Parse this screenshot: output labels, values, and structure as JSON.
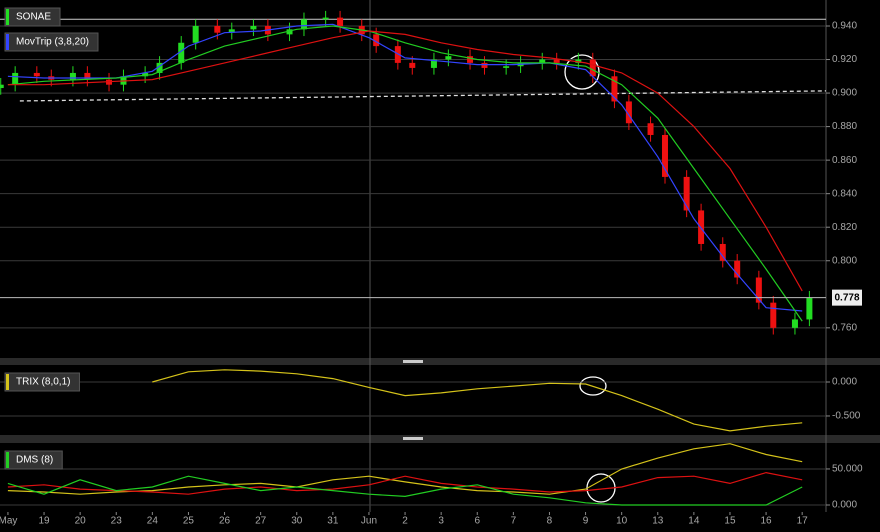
{
  "chart_data": [
    {
      "type": "candlestick",
      "title": "SONAE",
      "indicator": "MovTrip (3,8,20)",
      "up_color": "#22dd22",
      "down_color": "#ee1111",
      "ylim": [
        0.742,
        0.9555
      ],
      "yticks": [
        {
          "value": 0.94,
          "label": "0.940"
        },
        {
          "value": 0.92,
          "label": "0.920"
        },
        {
          "value": 0.9,
          "label": "0.900"
        },
        {
          "value": 0.88,
          "label": "0.880"
        },
        {
          "value": 0.86,
          "label": "0.860"
        },
        {
          "value": 0.84,
          "label": "0.840"
        },
        {
          "value": 0.82,
          "label": "0.820"
        },
        {
          "value": 0.8,
          "label": "0.800"
        },
        {
          "value": 0.76,
          "label": "0.760"
        }
      ],
      "grid": true,
      "last_value": 0.778,
      "reference_line": 0.944,
      "trendline": {
        "x": [
          0.33,
          22.66
        ],
        "values": [
          0.8953,
          0.9013
        ]
      },
      "candles": {
        "x": [
          -0.2,
          0.2,
          0.8,
          1.2,
          1.8,
          2.2,
          2.8,
          3.2,
          3.8,
          4.2,
          4.8,
          5.2,
          5.8,
          6.2,
          6.8,
          7.2,
          7.8,
          8.2,
          8.8,
          9.2,
          9.8,
          10.2,
          10.8,
          11.2,
          11.8,
          12.2,
          12.8,
          13.2,
          13.8,
          14.2,
          14.8,
          15.2,
          15.8,
          16.2,
          16.8,
          17.2,
          17.8,
          18.2,
          18.8,
          19.2,
          19.8,
          20.2,
          20.8,
          21.2,
          21.8,
          22.2
        ],
        "open": [
          0.903,
          0.905,
          0.912,
          0.91,
          0.908,
          0.912,
          0.908,
          0.905,
          0.91,
          0.912,
          0.918,
          0.93,
          0.94,
          0.936,
          0.938,
          0.94,
          0.935,
          0.938,
          0.944,
          0.945,
          0.94,
          0.935,
          0.928,
          0.918,
          0.915,
          0.92,
          0.922,
          0.918,
          0.915,
          0.916,
          0.918,
          0.92,
          0.918,
          0.92,
          0.91,
          0.895,
          0.882,
          0.875,
          0.85,
          0.83,
          0.81,
          0.8,
          0.79,
          0.775,
          0.76,
          0.765
        ],
        "high": [
          0.909,
          0.916,
          0.916,
          0.914,
          0.916,
          0.916,
          0.912,
          0.914,
          0.916,
          0.922,
          0.934,
          0.944,
          0.944,
          0.942,
          0.944,
          0.944,
          0.942,
          0.948,
          0.949,
          0.949,
          0.944,
          0.939,
          0.932,
          0.922,
          0.924,
          0.926,
          0.926,
          0.922,
          0.92,
          0.922,
          0.924,
          0.924,
          0.924,
          0.924,
          0.914,
          0.899,
          0.886,
          0.879,
          0.854,
          0.834,
          0.814,
          0.804,
          0.794,
          0.779,
          0.769,
          0.782
        ],
        "low": [
          0.899,
          0.901,
          0.906,
          0.904,
          0.904,
          0.904,
          0.901,
          0.901,
          0.906,
          0.908,
          0.914,
          0.926,
          0.932,
          0.932,
          0.934,
          0.931,
          0.931,
          0.934,
          0.94,
          0.936,
          0.931,
          0.924,
          0.914,
          0.911,
          0.911,
          0.916,
          0.914,
          0.911,
          0.911,
          0.912,
          0.914,
          0.914,
          0.914,
          0.906,
          0.891,
          0.878,
          0.871,
          0.846,
          0.826,
          0.806,
          0.796,
          0.786,
          0.771,
          0.756,
          0.756,
          0.761
        ],
        "close": [
          0.905,
          0.912,
          0.91,
          0.908,
          0.912,
          0.908,
          0.905,
          0.91,
          0.912,
          0.918,
          0.93,
          0.94,
          0.936,
          0.938,
          0.94,
          0.935,
          0.938,
          0.944,
          0.945,
          0.94,
          0.935,
          0.928,
          0.918,
          0.915,
          0.92,
          0.922,
          0.918,
          0.915,
          0.916,
          0.918,
          0.92,
          0.918,
          0.92,
          0.91,
          0.895,
          0.882,
          0.875,
          0.85,
          0.83,
          0.81,
          0.8,
          0.79,
          0.775,
          0.76,
          0.765,
          0.778
        ]
      },
      "x": [
        0,
        1,
        2,
        3,
        4,
        5,
        6,
        7,
        8,
        9,
        10,
        11,
        12,
        13,
        14,
        15,
        16,
        17,
        18,
        19,
        20,
        21,
        22
      ],
      "series": [
        {
          "color": "#3344ff",
          "values": [
            0.91,
            0.909,
            0.909,
            0.909,
            0.913,
            0.928,
            0.936,
            0.937,
            0.94,
            0.941,
            0.933,
            0.921,
            0.919,
            0.917,
            0.917,
            0.918,
            0.914,
            0.893,
            0.862,
            0.825,
            0.797,
            0.772,
            0.77
          ]
        },
        {
          "color": "#22cc22",
          "values": [
            0.905,
            0.907,
            0.908,
            0.909,
            0.911,
            0.92,
            0.928,
            0.933,
            0.938,
            0.94,
            0.937,
            0.93,
            0.924,
            0.92,
            0.918,
            0.918,
            0.916,
            0.905,
            0.885,
            0.855,
            0.825,
            0.795,
            0.764
          ]
        },
        {
          "color": "#dd1111",
          "values": [
            0.905,
            0.905,
            0.906,
            0.907,
            0.908,
            0.913,
            0.918,
            0.923,
            0.928,
            0.933,
            0.937,
            0.935,
            0.93,
            0.926,
            0.923,
            0.921,
            0.918,
            0.912,
            0.9,
            0.88,
            0.855,
            0.82,
            0.782
          ]
        }
      ]
    },
    {
      "type": "line",
      "title": "TRIX (8,0,1)",
      "ylim": [
        -0.78,
        0.25
      ],
      "yticks": [
        {
          "value": 0,
          "label": "0.000"
        },
        {
          "value": -0.5,
          "label": "-0.500"
        }
      ],
      "grid": true,
      "x": [
        0,
        1,
        2,
        3,
        4,
        5,
        6,
        7,
        8,
        9,
        10,
        11,
        12,
        13,
        14,
        15,
        16,
        17,
        18,
        19,
        20,
        21,
        22
      ],
      "series": [
        {
          "color": "#d4c21a",
          "values": [
            null,
            null,
            null,
            null,
            0.0,
            0.15,
            0.18,
            0.16,
            0.12,
            0.05,
            -0.08,
            -0.2,
            -0.16,
            -0.1,
            -0.06,
            -0.02,
            -0.03,
            -0.2,
            -0.4,
            -0.62,
            -0.72,
            -0.65,
            -0.6
          ]
        }
      ]
    },
    {
      "type": "line",
      "title": "DMS (8)",
      "ylim": [
        -9.7,
        86
      ],
      "yticks": [
        {
          "value": 50,
          "label": "50.000"
        },
        {
          "value": 0,
          "label": "0.000"
        }
      ],
      "grid": true,
      "xlim": [
        -0.22,
        22.66
      ],
      "xticks": [
        {
          "value": 0,
          "label": "May"
        },
        {
          "value": 1,
          "label": "19"
        },
        {
          "value": 2,
          "label": "20"
        },
        {
          "value": 3,
          "label": "23"
        },
        {
          "value": 4,
          "label": "24"
        },
        {
          "value": 5,
          "label": "25"
        },
        {
          "value": 6,
          "label": "26"
        },
        {
          "value": 7,
          "label": "27"
        },
        {
          "value": 8,
          "label": "30"
        },
        {
          "value": 9,
          "label": "31"
        },
        {
          "value": 10,
          "label": "Jun"
        },
        {
          "value": 11,
          "label": "2"
        },
        {
          "value": 12,
          "label": "3"
        },
        {
          "value": 13,
          "label": "6"
        },
        {
          "value": 14,
          "label": "7"
        },
        {
          "value": 15,
          "label": "8"
        },
        {
          "value": 16,
          "label": "9"
        },
        {
          "value": 17,
          "label": "10"
        },
        {
          "value": 18,
          "label": "13"
        },
        {
          "value": 19,
          "label": "14"
        },
        {
          "value": 20,
          "label": "15"
        },
        {
          "value": 21,
          "label": "16"
        },
        {
          "value": 22,
          "label": "17"
        }
      ],
      "x": [
        0,
        1,
        2,
        3,
        4,
        5,
        6,
        7,
        8,
        9,
        10,
        11,
        12,
        13,
        14,
        15,
        16,
        17,
        18,
        19,
        20,
        21,
        22
      ],
      "series": [
        {
          "color": "#d4c21a",
          "values": [
            20,
            18,
            15,
            18,
            20,
            25,
            28,
            30,
            25,
            35,
            40,
            32,
            25,
            20,
            18,
            15,
            22,
            50,
            65,
            78,
            85,
            70,
            60
          ]
        },
        {
          "color": "#dd1111",
          "values": [
            25,
            28,
            22,
            20,
            18,
            15,
            22,
            25,
            20,
            22,
            28,
            40,
            30,
            25,
            22,
            18,
            20,
            25,
            38,
            40,
            30,
            45,
            35
          ]
        },
        {
          "color": "#22cc22",
          "values": [
            30,
            15,
            35,
            20,
            25,
            40,
            30,
            20,
            25,
            20,
            15,
            12,
            22,
            28,
            15,
            10,
            3,
            0,
            0,
            0,
            0,
            0,
            25
          ]
        }
      ]
    }
  ]
}
